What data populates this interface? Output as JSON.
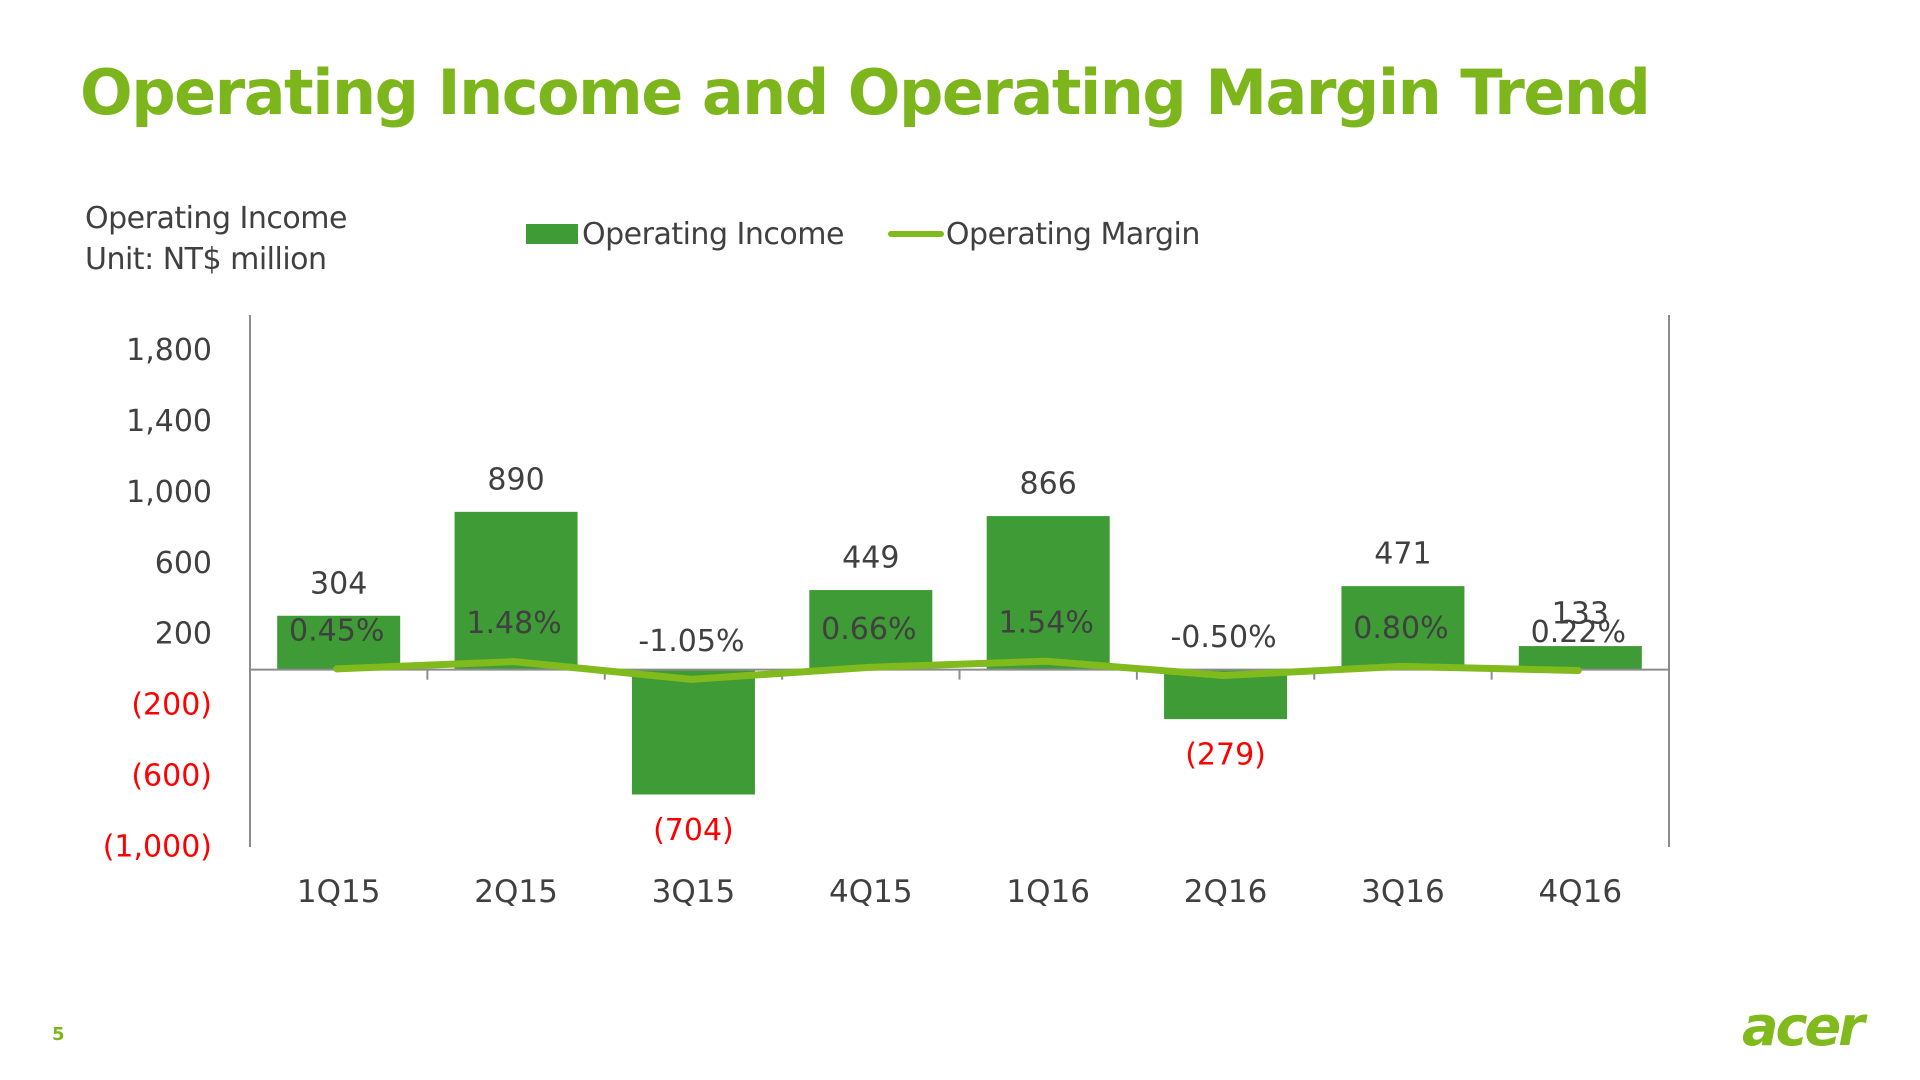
{
  "slide": {
    "title": "Operating Income and Operating Margin Trend",
    "page_number": "5",
    "logo_text": "acer"
  },
  "unit_label": {
    "line1": "Operating Income",
    "line2": "Unit: NT$ million"
  },
  "colors": {
    "title": "#7DB61C",
    "bar": "#3F9B35",
    "line": "#80BA1C",
    "text": "#404040",
    "negative": "#FF0000",
    "axis": "#8C8C8C"
  },
  "chart_data": {
    "type": "bar+line",
    "title": "Operating Income and Operating Margin Trend",
    "xlabel": "",
    "ylabel": "Operating Income (Unit: NT$ million)",
    "categories": [
      "1Q15",
      "2Q15",
      "3Q15",
      "4Q15",
      "1Q16",
      "2Q16",
      "3Q16",
      "4Q16"
    ],
    "series": [
      {
        "name": "Operating Income",
        "type": "bar",
        "values": [
          304,
          890,
          -704,
          449,
          866,
          -279,
          471,
          133
        ],
        "labels": [
          "304",
          "890",
          "(704)",
          "449",
          "866",
          "(279)",
          "471",
          "133"
        ]
      },
      {
        "name": "Operating Margin",
        "type": "line",
        "unit": "%",
        "values": [
          0.45,
          1.48,
          -1.05,
          0.66,
          1.54,
          -0.5,
          0.8,
          0.22
        ],
        "labels": [
          "0.45%",
          "1.48%",
          "-1.05%",
          "0.66%",
          "1.54%",
          "-0.50%",
          "0.80%",
          "0.22%"
        ]
      }
    ],
    "ylim": [
      -1000,
      2000
    ],
    "y_ticks": [
      {
        "value": 1800,
        "label": "1,800"
      },
      {
        "value": 1400,
        "label": "1,400"
      },
      {
        "value": 1000,
        "label": "1,000"
      },
      {
        "value": 600,
        "label": "600"
      },
      {
        "value": 200,
        "label": "200"
      },
      {
        "value": -200,
        "label": "(200)"
      },
      {
        "value": -600,
        "label": "(600)"
      },
      {
        "value": -1000,
        "label": "(1,000)"
      }
    ],
    "secondary_ylim": [
      -25,
      51
    ],
    "grid": false,
    "legend": {
      "position": "top",
      "items": [
        {
          "name": "Operating Income",
          "marker": "bar"
        },
        {
          "name": "Operating Margin",
          "marker": "line"
        }
      ]
    }
  }
}
